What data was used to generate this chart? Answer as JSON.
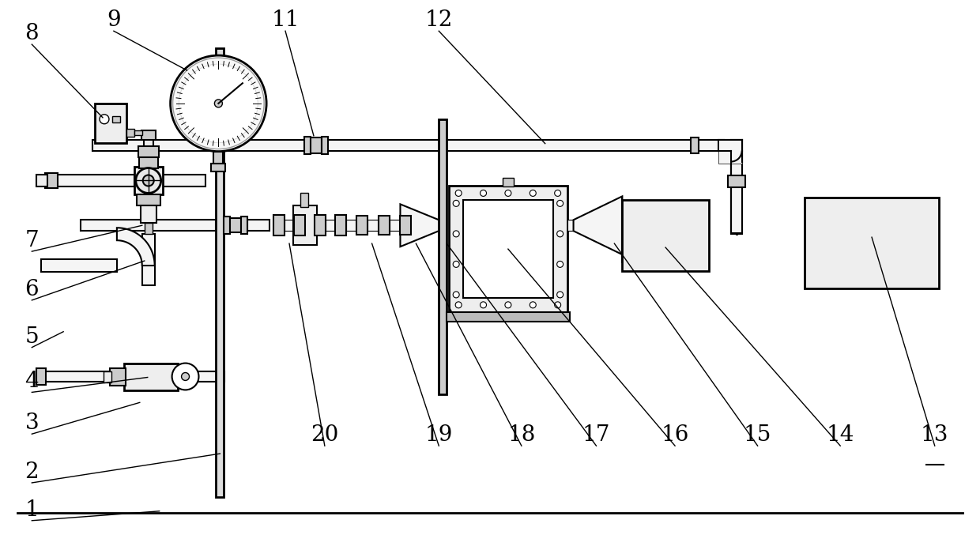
{
  "bg_color": "#ffffff",
  "line_color": "#000000",
  "pipe_fill": "#f5f5f5",
  "pipe_lw": 1.5,
  "component_fill": "#eeeeee",
  "dark_fill": "#cccccc",
  "label_fontsize": 20
}
